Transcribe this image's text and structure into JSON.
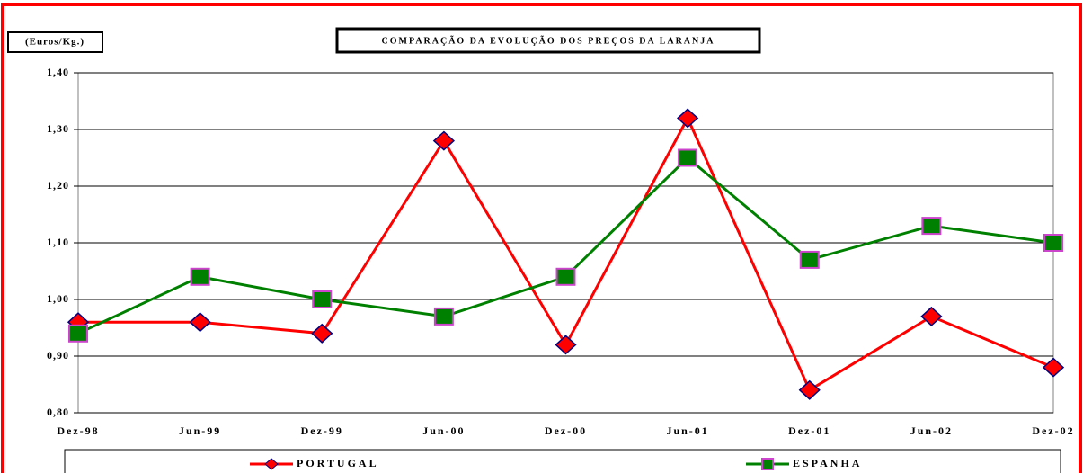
{
  "chart_data": {
    "type": "line",
    "title": "COMPARAÇÃO DA EVOLUÇÃO DOS PREÇOS DA LARANJA",
    "y_label": "(Euros/Kg.)",
    "categories": [
      "Dez-98",
      "Jun-99",
      "Dez-99",
      "Jun-00",
      "Dez-00",
      "Jun-01",
      "Dez-01",
      "Jun-02",
      "Dez-02"
    ],
    "series": [
      {
        "name": "PORTUGAL",
        "color": "#ff0000",
        "marker": "diamond",
        "values": [
          0.96,
          0.96,
          0.94,
          1.28,
          0.92,
          1.32,
          0.84,
          0.97,
          0.88
        ]
      },
      {
        "name": "ESPANHA",
        "color": "#008000",
        "marker": "square",
        "values": [
          0.94,
          1.04,
          1.0,
          0.97,
          1.04,
          1.25,
          1.07,
          1.13,
          1.1
        ]
      }
    ],
    "ylim": [
      0.8,
      1.4
    ],
    "yticks": [
      {
        "value": 0.8,
        "label": "0,80"
      },
      {
        "value": 0.9,
        "label": "0,90"
      },
      {
        "value": 1.0,
        "label": "1,00"
      },
      {
        "value": 1.1,
        "label": "1,10"
      },
      {
        "value": 1.2,
        "label": "1,20"
      },
      {
        "value": 1.3,
        "label": "1,30"
      },
      {
        "value": 1.4,
        "label": "1,40"
      }
    ],
    "grid": true,
    "legend": "bottom"
  }
}
